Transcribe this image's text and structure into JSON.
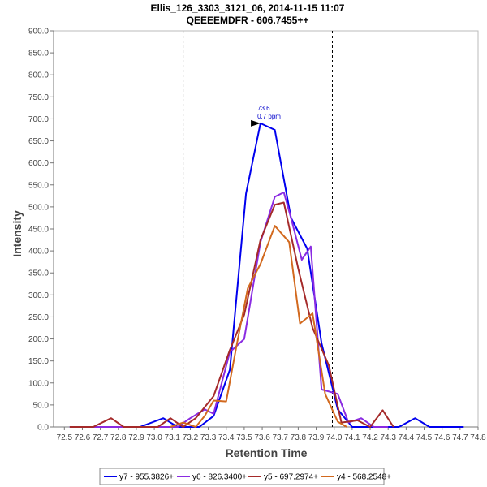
{
  "chart_data": {
    "type": "line",
    "title": "Ellis_126_3303_3121_06, 2014-11-15 11:07",
    "subtitle": "QEEEEMDFR - 606.7455++",
    "xlabel": "Retention Time",
    "ylabel": "Intensity",
    "xlim": [
      72.44,
      74.8
    ],
    "ylim": [
      0,
      900
    ],
    "x_ticks": [
      "72.5",
      "72.6",
      "72.7",
      "72.8",
      "72.9",
      "73.0",
      "73.1",
      "73.2",
      "73.3",
      "73.4",
      "73.5",
      "73.6",
      "73.7",
      "73.8",
      "73.9",
      "74.0",
      "74.1",
      "74.2",
      "74.3",
      "74.4",
      "74.5",
      "74.6",
      "74.7",
      "74.8"
    ],
    "y_ticks": [
      "0.0",
      "50.0",
      "100.0",
      "150.0",
      "200.0",
      "250.0",
      "300.0",
      "350.0",
      "400.0",
      "450.0",
      "500.0",
      "550.0",
      "600.0",
      "650.0",
      "700.0",
      "750.0",
      "800.0",
      "850.0",
      "900.0"
    ],
    "vlines": [
      73.16,
      73.99
    ],
    "annotation": {
      "x": 73.6,
      "y": 690,
      "line1": "73.6",
      "line2": "0.7 ppm",
      "color": "#0000cc"
    },
    "series": [
      {
        "name": "y7 - 955.3826+",
        "color": "#0000ee",
        "points": [
          [
            72.53,
            0
          ],
          [
            72.66,
            0
          ],
          [
            72.79,
            0
          ],
          [
            72.92,
            0
          ],
          [
            73.05,
            20
          ],
          [
            73.13,
            0
          ],
          [
            73.25,
            0
          ],
          [
            73.33,
            25
          ],
          [
            73.42,
            130
          ],
          [
            73.51,
            530
          ],
          [
            73.59,
            690
          ],
          [
            73.67,
            675
          ],
          [
            73.76,
            475
          ],
          [
            73.85,
            405
          ],
          [
            73.93,
            190
          ],
          [
            74.02,
            40
          ],
          [
            74.1,
            0
          ],
          [
            74.19,
            0
          ],
          [
            74.27,
            0
          ],
          [
            74.36,
            0
          ],
          [
            74.45,
            20
          ],
          [
            74.53,
            0
          ],
          [
            74.62,
            0
          ],
          [
            74.72,
            0
          ]
        ]
      },
      {
        "name": "y6 - 826.3400+",
        "color": "#8a2be2",
        "points": [
          [
            72.53,
            0
          ],
          [
            72.66,
            0
          ],
          [
            72.79,
            0
          ],
          [
            72.92,
            0
          ],
          [
            73.05,
            0
          ],
          [
            73.13,
            0
          ],
          [
            73.2,
            20
          ],
          [
            73.28,
            40
          ],
          [
            73.33,
            30
          ],
          [
            73.42,
            170
          ],
          [
            73.5,
            200
          ],
          [
            73.59,
            420
          ],
          [
            73.67,
            523
          ],
          [
            73.72,
            533
          ],
          [
            73.76,
            475
          ],
          [
            73.82,
            380
          ],
          [
            73.87,
            410
          ],
          [
            73.93,
            85
          ],
          [
            74.02,
            75
          ],
          [
            74.08,
            10
          ],
          [
            74.15,
            20
          ],
          [
            74.22,
            0
          ],
          [
            74.3,
            0
          ]
        ]
      },
      {
        "name": "y5 - 697.2974+",
        "color": "#a52a2a",
        "points": [
          [
            72.53,
            0
          ],
          [
            72.66,
            0
          ],
          [
            72.76,
            20
          ],
          [
            72.83,
            0
          ],
          [
            72.92,
            0
          ],
          [
            73.02,
            0
          ],
          [
            73.09,
            20
          ],
          [
            73.16,
            0
          ],
          [
            73.23,
            20
          ],
          [
            73.33,
            70
          ],
          [
            73.42,
            175
          ],
          [
            73.5,
            255
          ],
          [
            73.59,
            425
          ],
          [
            73.67,
            505
          ],
          [
            73.72,
            510
          ],
          [
            73.8,
            360
          ],
          [
            73.88,
            225
          ],
          [
            73.97,
            140
          ],
          [
            74.04,
            10
          ],
          [
            74.13,
            15
          ],
          [
            74.2,
            0
          ],
          [
            74.27,
            38
          ],
          [
            74.33,
            0
          ]
        ]
      },
      {
        "name": "y4 - 568.2548+",
        "color": "#d2691e",
        "points": [
          [
            73.09,
            0
          ],
          [
            73.16,
            10
          ],
          [
            73.23,
            0
          ],
          [
            73.28,
            25
          ],
          [
            73.33,
            60
          ],
          [
            73.4,
            58
          ],
          [
            73.46,
            190
          ],
          [
            73.52,
            315
          ],
          [
            73.59,
            370
          ],
          [
            73.67,
            457
          ],
          [
            73.75,
            420
          ],
          [
            73.81,
            235
          ],
          [
            73.88,
            258
          ],
          [
            73.95,
            75
          ],
          [
            74.02,
            12
          ],
          [
            74.07,
            0
          ]
        ]
      }
    ],
    "legend": {
      "placement": "bottom-center"
    }
  }
}
